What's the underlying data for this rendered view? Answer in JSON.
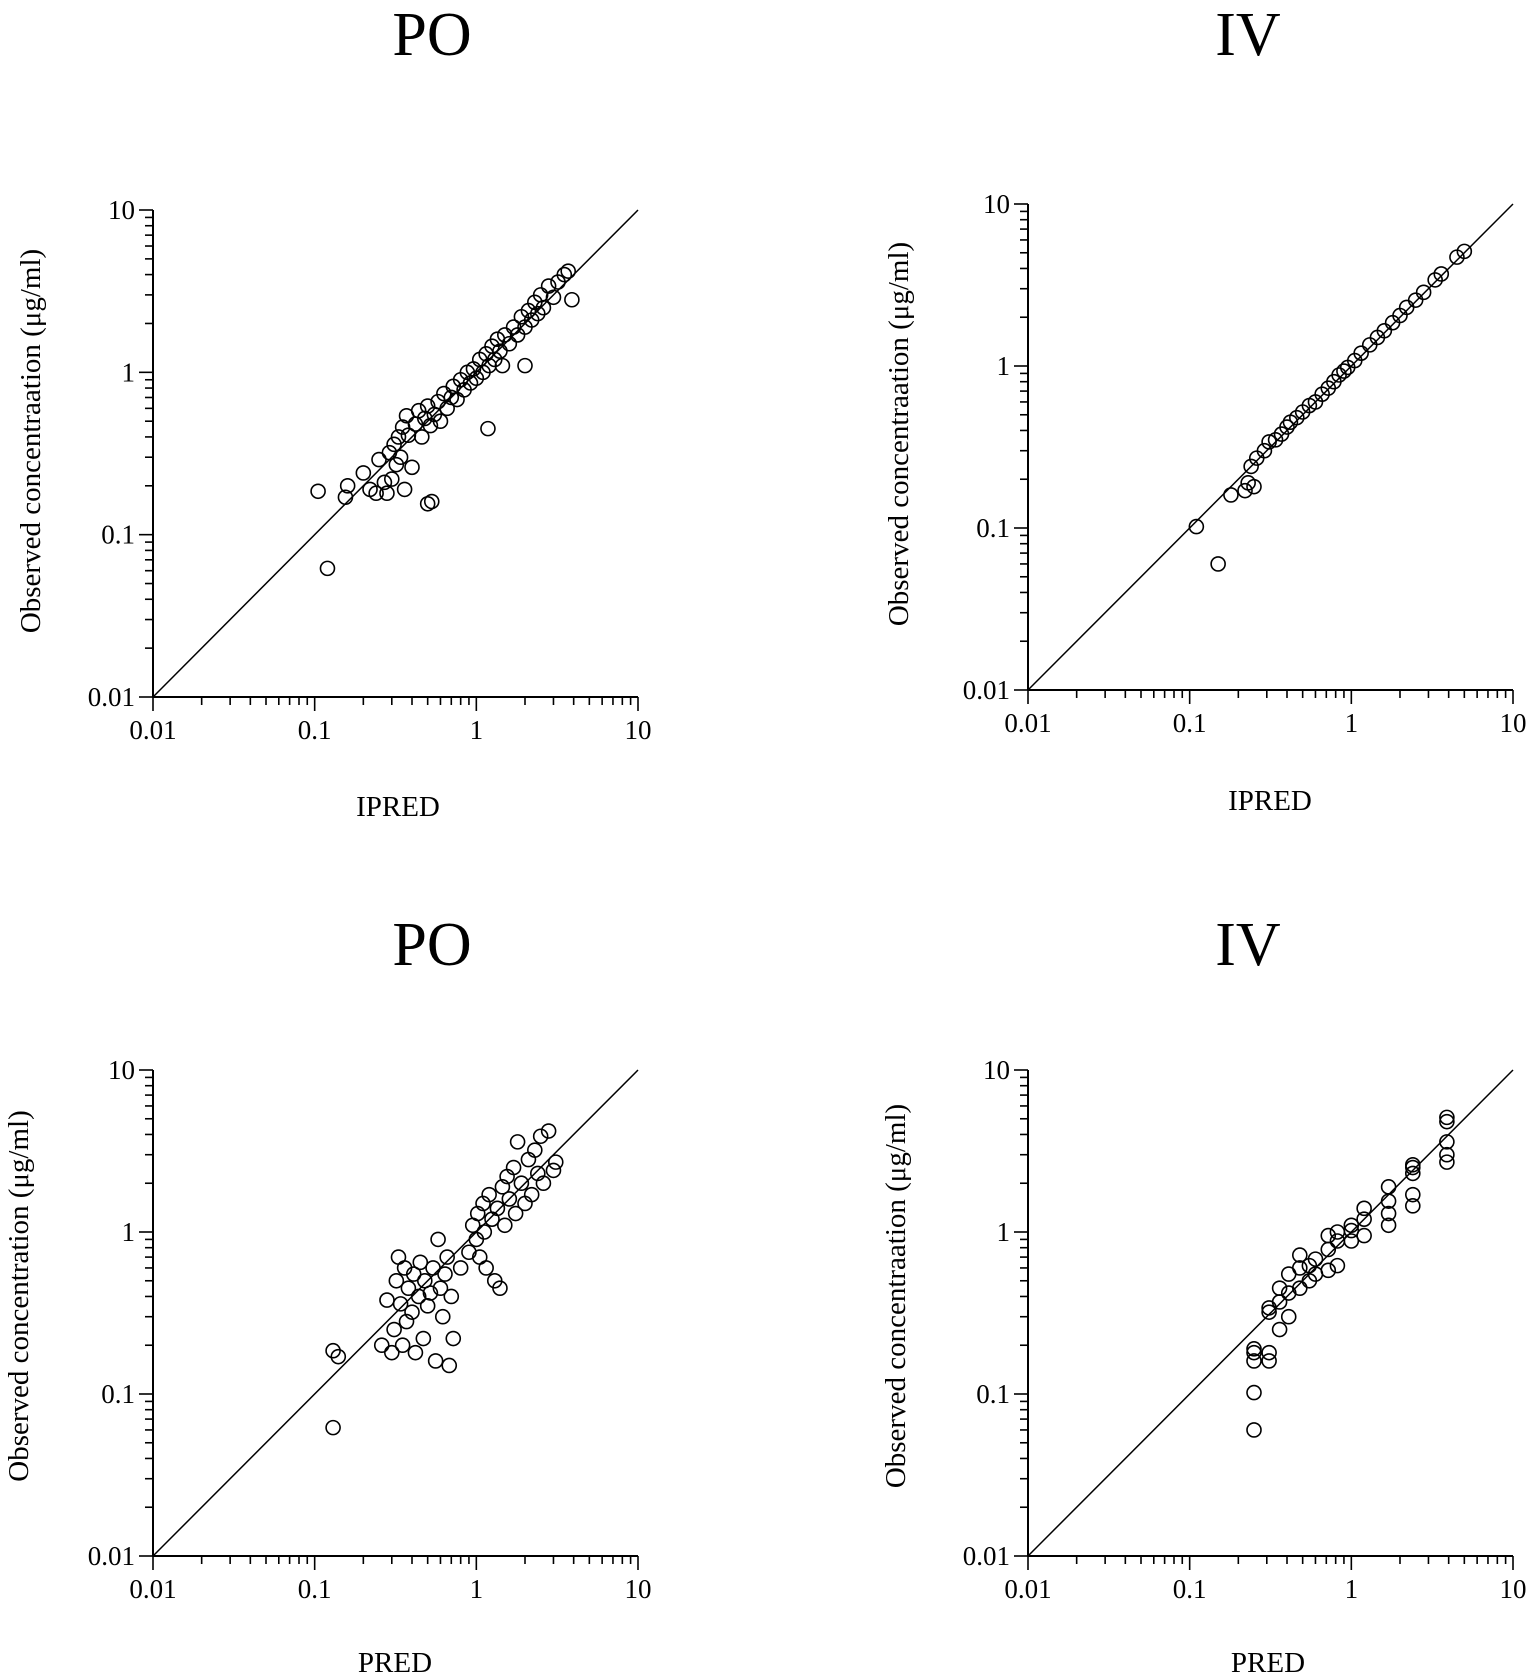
{
  "chart_data": [
    {
      "type": "scatter",
      "title": "PO",
      "xlabel": "IPRED",
      "ylabel": "Observed concentraation (μg/ml)",
      "xscale": "log",
      "yscale": "log",
      "xlim": [
        0.01,
        10
      ],
      "ylim": [
        0.01,
        10
      ],
      "xticks": [
        "0.01",
        "0.1",
        "1",
        "10"
      ],
      "yticks": [
        "0.01",
        "0.1",
        "1",
        "10"
      ],
      "reference_line": "identity (y = x)",
      "marker": "open circle",
      "points": [
        [
          0.105,
          0.185
        ],
        [
          0.12,
          0.062
        ],
        [
          0.155,
          0.17
        ],
        [
          0.16,
          0.2
        ],
        [
          0.2,
          0.24
        ],
        [
          0.22,
          0.19
        ],
        [
          0.24,
          0.18
        ],
        [
          0.25,
          0.29
        ],
        [
          0.27,
          0.21
        ],
        [
          0.28,
          0.18
        ],
        [
          0.29,
          0.32
        ],
        [
          0.3,
          0.22
        ],
        [
          0.31,
          0.36
        ],
        [
          0.32,
          0.27
        ],
        [
          0.33,
          0.4
        ],
        [
          0.34,
          0.3
        ],
        [
          0.35,
          0.46
        ],
        [
          0.36,
          0.19
        ],
        [
          0.37,
          0.54
        ],
        [
          0.38,
          0.41
        ],
        [
          0.4,
          0.26
        ],
        [
          0.42,
          0.48
        ],
        [
          0.44,
          0.58
        ],
        [
          0.46,
          0.4
        ],
        [
          0.48,
          0.52
        ],
        [
          0.5,
          0.155
        ],
        [
          0.53,
          0.16
        ],
        [
          0.5,
          0.62
        ],
        [
          0.52,
          0.47
        ],
        [
          0.55,
          0.55
        ],
        [
          0.58,
          0.66
        ],
        [
          0.6,
          0.5
        ],
        [
          0.63,
          0.74
        ],
        [
          0.66,
          0.6
        ],
        [
          0.7,
          0.7
        ],
        [
          0.72,
          0.82
        ],
        [
          0.76,
          0.68
        ],
        [
          0.8,
          0.9
        ],
        [
          0.84,
          0.78
        ],
        [
          0.88,
          1.0
        ],
        [
          0.92,
          0.86
        ],
        [
          0.96,
          1.05
        ],
        [
          1.0,
          0.92
        ],
        [
          1.05,
          1.2
        ],
        [
          1.1,
          1.0
        ],
        [
          1.15,
          1.3
        ],
        [
          1.2,
          1.1
        ],
        [
          1.18,
          0.45
        ],
        [
          1.25,
          1.45
        ],
        [
          1.3,
          1.2
        ],
        [
          1.35,
          1.6
        ],
        [
          1.4,
          1.35
        ],
        [
          1.45,
          1.1
        ],
        [
          1.5,
          1.7
        ],
        [
          1.6,
          1.5
        ],
        [
          1.7,
          1.9
        ],
        [
          1.8,
          1.7
        ],
        [
          1.9,
          2.2
        ],
        [
          2.0,
          1.9
        ],
        [
          2.0,
          1.1
        ],
        [
          2.1,
          2.4
        ],
        [
          2.2,
          2.1
        ],
        [
          2.3,
          2.7
        ],
        [
          2.4,
          2.3
        ],
        [
          2.5,
          3.0
        ],
        [
          2.6,
          2.5
        ],
        [
          2.8,
          3.4
        ],
        [
          3.0,
          2.9
        ],
        [
          3.2,
          3.6
        ],
        [
          3.5,
          4.0
        ],
        [
          3.7,
          4.2
        ],
        [
          3.9,
          2.8
        ]
      ]
    },
    {
      "type": "scatter",
      "title": "IV",
      "xlabel": "IPRED",
      "ylabel": "Observed concentraation (μg/ml)",
      "xscale": "log",
      "yscale": "log",
      "xlim": [
        0.01,
        10
      ],
      "ylim": [
        0.01,
        10
      ],
      "xticks": [
        "0.01",
        "0.1",
        "1",
        "10"
      ],
      "yticks": [
        "0.01",
        "0.1",
        "1",
        "10"
      ],
      "reference_line": "identity (y = x)",
      "marker": "open circle",
      "points": [
        [
          0.11,
          0.102
        ],
        [
          0.15,
          0.06
        ],
        [
          0.18,
          0.16
        ],
        [
          0.22,
          0.17
        ],
        [
          0.23,
          0.19
        ],
        [
          0.25,
          0.18
        ],
        [
          0.24,
          0.24
        ],
        [
          0.26,
          0.27
        ],
        [
          0.29,
          0.3
        ],
        [
          0.31,
          0.34
        ],
        [
          0.34,
          0.35
        ],
        [
          0.37,
          0.38
        ],
        [
          0.4,
          0.42
        ],
        [
          0.42,
          0.45
        ],
        [
          0.46,
          0.48
        ],
        [
          0.5,
          0.52
        ],
        [
          0.55,
          0.57
        ],
        [
          0.6,
          0.6
        ],
        [
          0.66,
          0.67
        ],
        [
          0.72,
          0.73
        ],
        [
          0.78,
          0.8
        ],
        [
          0.84,
          0.88
        ],
        [
          0.9,
          0.93
        ],
        [
          0.95,
          0.98
        ],
        [
          1.05,
          1.08
        ],
        [
          1.15,
          1.2
        ],
        [
          1.3,
          1.35
        ],
        [
          1.45,
          1.5
        ],
        [
          1.6,
          1.65
        ],
        [
          1.8,
          1.85
        ],
        [
          2.0,
          2.05
        ],
        [
          2.2,
          2.3
        ],
        [
          2.5,
          2.55
        ],
        [
          2.8,
          2.85
        ],
        [
          3.3,
          3.4
        ],
        [
          3.6,
          3.7
        ],
        [
          4.5,
          4.7
        ],
        [
          5.0,
          5.1
        ]
      ]
    },
    {
      "type": "scatter",
      "title": "PO",
      "xlabel": "PRED",
      "ylabel": "Observed concentration (μg/ml)",
      "xscale": "log",
      "yscale": "log",
      "xlim": [
        0.01,
        10
      ],
      "ylim": [
        0.01,
        10
      ],
      "xticks": [
        "0.01",
        "0.1",
        "1",
        "10"
      ],
      "yticks": [
        "0.01",
        "0.1",
        "1",
        "10"
      ],
      "reference_line": "identity (y = x)",
      "marker": "open circle",
      "points": [
        [
          0.13,
          0.185
        ],
        [
          0.14,
          0.17
        ],
        [
          0.13,
          0.062
        ],
        [
          0.26,
          0.2
        ],
        [
          0.28,
          0.38
        ],
        [
          0.3,
          0.18
        ],
        [
          0.31,
          0.25
        ],
        [
          0.32,
          0.5
        ],
        [
          0.33,
          0.7
        ],
        [
          0.34,
          0.36
        ],
        [
          0.35,
          0.2
        ],
        [
          0.36,
          0.6
        ],
        [
          0.37,
          0.28
        ],
        [
          0.38,
          0.45
        ],
        [
          0.4,
          0.32
        ],
        [
          0.41,
          0.55
        ],
        [
          0.42,
          0.18
        ],
        [
          0.44,
          0.4
        ],
        [
          0.45,
          0.65
        ],
        [
          0.47,
          0.22
        ],
        [
          0.48,
          0.5
        ],
        [
          0.5,
          0.35
        ],
        [
          0.52,
          0.42
        ],
        [
          0.54,
          0.6
        ],
        [
          0.56,
          0.16
        ],
        [
          0.58,
          0.9
        ],
        [
          0.6,
          0.45
        ],
        [
          0.62,
          0.3
        ],
        [
          0.64,
          0.55
        ],
        [
          0.66,
          0.7
        ],
        [
          0.68,
          0.15
        ],
        [
          0.7,
          0.4
        ],
        [
          0.72,
          0.22
        ],
        [
          0.8,
          0.6
        ],
        [
          0.9,
          0.75
        ],
        [
          0.95,
          1.1
        ],
        [
          1.0,
          0.9
        ],
        [
          1.02,
          1.3
        ],
        [
          1.05,
          0.7
        ],
        [
          1.1,
          1.5
        ],
        [
          1.12,
          1.0
        ],
        [
          1.15,
          0.6
        ],
        [
          1.2,
          1.7
        ],
        [
          1.25,
          1.2
        ],
        [
          1.3,
          0.5
        ],
        [
          1.35,
          1.4
        ],
        [
          1.4,
          0.45
        ],
        [
          1.45,
          1.9
        ],
        [
          1.5,
          1.1
        ],
        [
          1.55,
          2.2
        ],
        [
          1.6,
          1.6
        ],
        [
          1.7,
          2.5
        ],
        [
          1.75,
          1.3
        ],
        [
          1.8,
          3.6
        ],
        [
          1.9,
          2.0
        ],
        [
          2.0,
          1.5
        ],
        [
          2.1,
          2.8
        ],
        [
          2.2,
          1.7
        ],
        [
          2.3,
          3.2
        ],
        [
          2.4,
          2.3
        ],
        [
          2.5,
          3.9
        ],
        [
          2.6,
          2.0
        ],
        [
          2.8,
          4.2
        ],
        [
          3.0,
          2.4
        ],
        [
          3.1,
          2.7
        ]
      ]
    },
    {
      "type": "scatter",
      "title": "IV",
      "xlabel": "PRED",
      "ylabel": "Observed concentraation (μg/ml)",
      "xscale": "log",
      "yscale": "log",
      "xlim": [
        0.01,
        10
      ],
      "ylim": [
        0.01,
        10
      ],
      "xticks": [
        "0.01",
        "0.1",
        "1",
        "10"
      ],
      "yticks": [
        "0.01",
        "0.1",
        "1",
        "10"
      ],
      "reference_line": "identity (y = x)",
      "marker": "open circle",
      "points": [
        [
          0.25,
          0.06
        ],
        [
          0.25,
          0.102
        ],
        [
          0.25,
          0.16
        ],
        [
          0.25,
          0.18
        ],
        [
          0.25,
          0.19
        ],
        [
          0.31,
          0.16
        ],
        [
          0.31,
          0.18
        ],
        [
          0.31,
          0.32
        ],
        [
          0.31,
          0.34
        ],
        [
          0.36,
          0.25
        ],
        [
          0.36,
          0.37
        ],
        [
          0.36,
          0.45
        ],
        [
          0.41,
          0.3
        ],
        [
          0.41,
          0.42
        ],
        [
          0.41,
          0.55
        ],
        [
          0.48,
          0.45
        ],
        [
          0.48,
          0.6
        ],
        [
          0.48,
          0.72
        ],
        [
          0.55,
          0.5
        ],
        [
          0.55,
          0.62
        ],
        [
          0.6,
          0.55
        ],
        [
          0.6,
          0.68
        ],
        [
          0.72,
          0.58
        ],
        [
          0.72,
          0.78
        ],
        [
          0.72,
          0.95
        ],
        [
          0.82,
          0.62
        ],
        [
          0.82,
          0.88
        ],
        [
          0.82,
          1.0
        ],
        [
          1.0,
          0.88
        ],
        [
          1.0,
          1.02
        ],
        [
          1.0,
          1.1
        ],
        [
          1.2,
          0.95
        ],
        [
          1.2,
          1.2
        ],
        [
          1.2,
          1.4
        ],
        [
          1.7,
          1.1
        ],
        [
          1.7,
          1.3
        ],
        [
          1.7,
          1.55
        ],
        [
          1.7,
          1.9
        ],
        [
          2.4,
          1.45
        ],
        [
          2.4,
          1.7
        ],
        [
          2.4,
          2.3
        ],
        [
          2.4,
          2.5
        ],
        [
          2.4,
          2.6
        ],
        [
          3.9,
          2.7
        ],
        [
          3.9,
          3.0
        ],
        [
          3.9,
          3.6
        ],
        [
          3.9,
          4.8
        ],
        [
          3.9,
          5.1
        ]
      ]
    }
  ]
}
